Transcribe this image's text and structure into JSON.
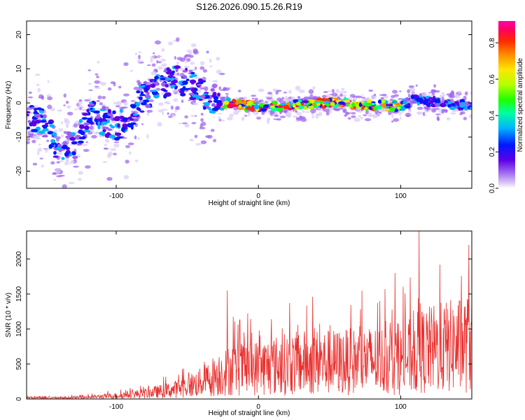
{
  "title": "S126.2026.090.15.26.R19",
  "chart_data": [
    {
      "type": "heatmap",
      "xlabel": "Height of straight line (km)",
      "ylabel": "Frequency (Hz)",
      "xlim": [
        -163,
        150
      ],
      "ylim": [
        -25,
        24
      ],
      "xticks": [
        -100,
        0,
        100
      ],
      "yticks": [
        -20,
        -10,
        0,
        10,
        20
      ],
      "colorbar": {
        "label": "Normalized spectral amplitude",
        "range": [
          0,
          0.92
        ],
        "ticks": [
          "0.0",
          "0.2",
          "0.4",
          "0.6",
          "0.8"
        ],
        "colormap": [
          "#ffffff",
          "#dccaf6",
          "#9a5ff0",
          "#5a00e6",
          "#0018ff",
          "#00b4ff",
          "#00ffa0",
          "#20ff00",
          "#b4ff00",
          "#ffe600",
          "#ff8a00",
          "#ff2a00",
          "#ff0060",
          "#ff00a8"
        ]
      },
      "ridge": [
        {
          "x": -163,
          "y": -4
        },
        {
          "x": -150,
          "y": -6
        },
        {
          "x": -140,
          "y": -14
        },
        {
          "x": -128,
          "y": -12
        },
        {
          "x": -118,
          "y": -3
        },
        {
          "x": -110,
          "y": -5
        },
        {
          "x": -100,
          "y": -7
        },
        {
          "x": -90,
          "y": -4
        },
        {
          "x": -80,
          "y": 2
        },
        {
          "x": -70,
          "y": 5
        },
        {
          "x": -60,
          "y": 7
        },
        {
          "x": -50,
          "y": 6
        },
        {
          "x": -40,
          "y": 3
        },
        {
          "x": -30,
          "y": 0
        },
        {
          "x": -25,
          "y": 0
        },
        {
          "x": 0,
          "y": -1
        },
        {
          "x": 50,
          "y": 0
        },
        {
          "x": 100,
          "y": -1
        },
        {
          "x": 110,
          "y": 1
        },
        {
          "x": 130,
          "y": 0
        },
        {
          "x": 150,
          "y": -1
        }
      ]
    },
    {
      "type": "line",
      "xlabel": "Height of straight line (km)",
      "ylabel": "SNR (10 * v/v)",
      "xlim": [
        -163,
        150
      ],
      "ylim": [
        0,
        2400
      ],
      "xticks": [
        -100,
        0,
        100
      ],
      "yticks": [
        0,
        500,
        1000,
        1500,
        2000
      ],
      "color": "#e8302e",
      "envelope": [
        {
          "x": -163,
          "y": 40
        },
        {
          "x": -140,
          "y": 30
        },
        {
          "x": -120,
          "y": 50
        },
        {
          "x": -100,
          "y": 90
        },
        {
          "x": -80,
          "y": 150
        },
        {
          "x": -60,
          "y": 250
        },
        {
          "x": -40,
          "y": 450
        },
        {
          "x": -30,
          "y": 650
        },
        {
          "x": -20,
          "y": 800
        },
        {
          "x": 0,
          "y": 850
        },
        {
          "x": 20,
          "y": 950
        },
        {
          "x": 40,
          "y": 1000
        },
        {
          "x": 60,
          "y": 1000
        },
        {
          "x": 80,
          "y": 1050
        },
        {
          "x": 100,
          "y": 1050
        },
        {
          "x": 115,
          "y": 1300
        },
        {
          "x": 130,
          "y": 1400
        },
        {
          "x": 150,
          "y": 1500
        }
      ],
      "peaks": [
        {
          "x": -22,
          "y": 1550
        },
        {
          "x": 113,
          "y": 2400
        },
        {
          "x": 148,
          "y": 2200
        },
        {
          "x": 96,
          "y": 1800
        }
      ]
    }
  ]
}
